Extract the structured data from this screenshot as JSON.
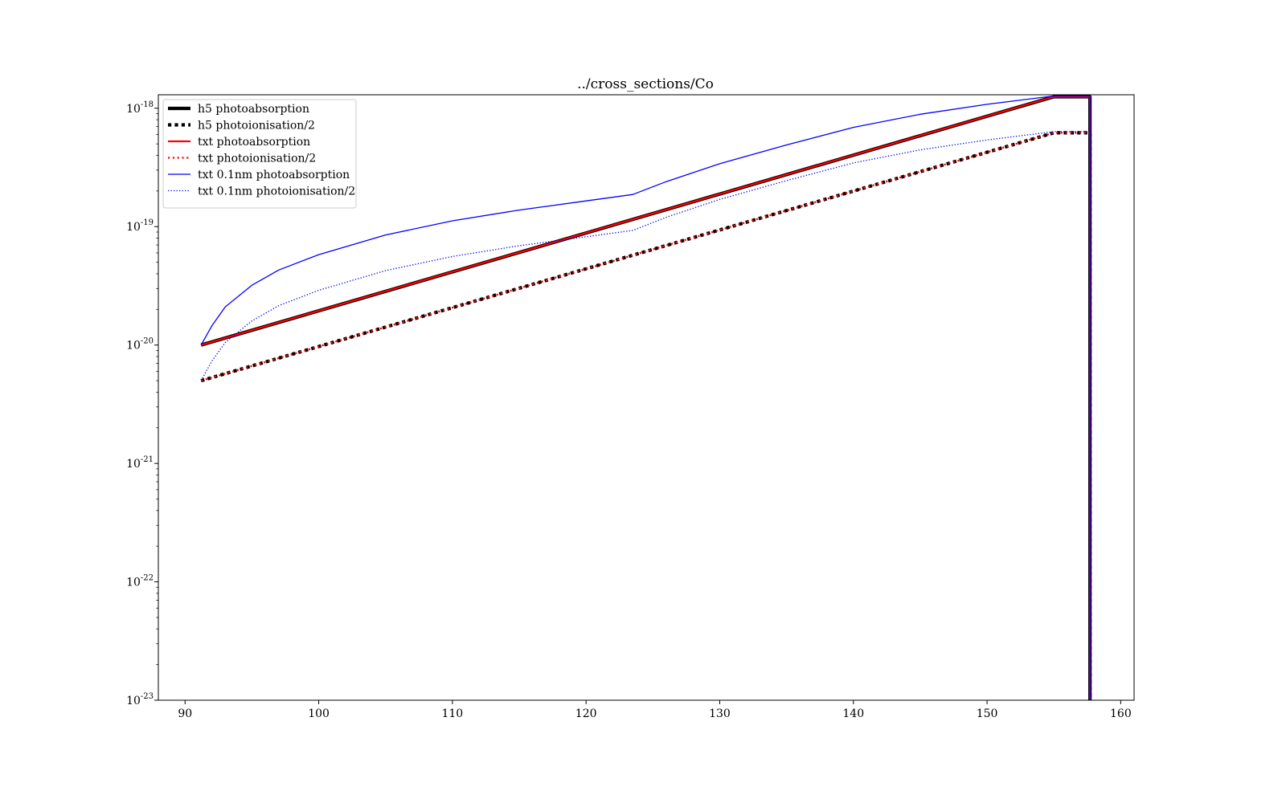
{
  "chart_data": {
    "type": "line",
    "title": "../cross_sections/Co",
    "xlabel": "",
    "ylabel": "",
    "xlim": [
      88,
      161
    ],
    "ylim": [
      1e-23,
      1.3e-18
    ],
    "yscale": "log",
    "xticks": [
      90,
      100,
      110,
      120,
      130,
      140,
      150,
      160
    ],
    "yticks": [
      {
        "value": 1e-23,
        "base": "10",
        "exp": "-23"
      },
      {
        "value": 1e-22,
        "base": "10",
        "exp": "-22"
      },
      {
        "value": 1e-21,
        "base": "10",
        "exp": "-21"
      },
      {
        "value": 1e-20,
        "base": "10",
        "exp": "-20"
      },
      {
        "value": 1e-19,
        "base": "10",
        "exp": "-19"
      },
      {
        "value": 1e-18,
        "base": "10",
        "exp": "-18"
      }
    ],
    "grid": false,
    "legend_position": "upper-left",
    "series": [
      {
        "name": "h5 photoabsorption",
        "color": "#000000",
        "style": "solid-thick",
        "x": [
          91.2,
          155.0,
          157.7,
          157.7
        ],
        "y": [
          1e-20,
          1.25e-18,
          1.25e-18,
          1e-23
        ]
      },
      {
        "name": "h5 photoionisation/2",
        "color": "#000000",
        "style": "dotted-thick",
        "x": [
          91.2,
          155.0,
          157.7,
          157.7
        ],
        "y": [
          5e-21,
          6.2e-19,
          6.2e-19,
          1e-23
        ]
      },
      {
        "name": "txt photoabsorption",
        "color": "#ff0000",
        "style": "solid-medium",
        "x": [
          91.2,
          155.0,
          157.7,
          157.7
        ],
        "y": [
          1e-20,
          1.25e-18,
          1.25e-18,
          1e-23
        ]
      },
      {
        "name": "txt photoionisation/2",
        "color": "#ff0000",
        "style": "dotted-medium",
        "x": [
          91.2,
          155.0,
          157.7,
          157.7
        ],
        "y": [
          5e-21,
          6.2e-19,
          6.2e-19,
          1e-23
        ]
      },
      {
        "name": "txt 0.1nm photoabsorption",
        "color": "#0000ff",
        "style": "solid-thin",
        "x": [
          91.2,
          92,
          93,
          95,
          97,
          100,
          105,
          110,
          115,
          120,
          123.5,
          126,
          130,
          135,
          140,
          145,
          150,
          155,
          157.7,
          157.7
        ],
        "y": [
          1e-20,
          1.45e-20,
          2.1e-20,
          3.2e-20,
          4.3e-20,
          5.8e-20,
          8.5e-20,
          1.12e-19,
          1.38e-19,
          1.65e-19,
          1.87e-19,
          2.4e-19,
          3.4e-19,
          4.9e-19,
          6.9e-19,
          8.9e-19,
          1.08e-18,
          1.27e-18,
          1.27e-18,
          1e-23
        ]
      },
      {
        "name": "txt 0.1nm photoionisation/2",
        "color": "#0000ff",
        "style": "dotted-thin",
        "x": [
          91.2,
          92,
          93,
          95,
          97,
          100,
          105,
          110,
          115,
          120,
          123.5,
          126,
          130,
          135,
          140,
          145,
          150,
          155,
          157.7,
          157.7
        ],
        "y": [
          5e-21,
          7.3e-21,
          1.05e-20,
          1.6e-20,
          2.15e-20,
          2.9e-20,
          4.25e-20,
          5.6e-20,
          6.9e-20,
          8.2e-20,
          9.3e-20,
          1.2e-19,
          1.7e-19,
          2.45e-19,
          3.45e-19,
          4.45e-19,
          5.4e-19,
          6.35e-19,
          6.35e-19,
          1e-23
        ]
      }
    ]
  }
}
